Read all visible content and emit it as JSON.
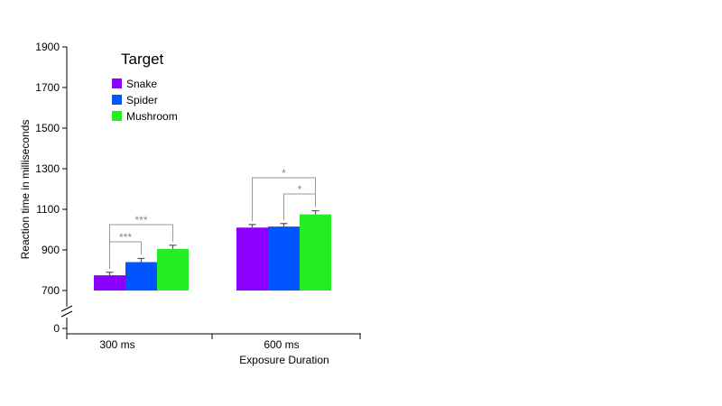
{
  "chart_data": {
    "type": "bar",
    "title": "",
    "xlabel": "Exposure Duration",
    "ylabel": "Reaction time in milliseconds",
    "ylim": [
      700,
      1900
    ],
    "y_ticks": [
      "1900",
      "1700",
      "1500",
      "1300",
      "1100",
      "900",
      "700"
    ],
    "y_break_tick": "0",
    "categories": [
      "300 ms",
      "600 ms"
    ],
    "legend": {
      "title": "Target",
      "placement": "top-left"
    },
    "series": [
      {
        "name": "Snake",
        "color": "#8b00ff",
        "values": [
          775,
          1010
        ],
        "errors": [
          15,
          15
        ]
      },
      {
        "name": "Spider",
        "color": "#0055ff",
        "values": [
          840,
          1015
        ],
        "errors": [
          18,
          15
        ]
      },
      {
        "name": "Mushroom",
        "color": "#22ee22",
        "values": [
          905,
          1075
        ],
        "errors": [
          18,
          18
        ]
      }
    ],
    "annotations": [
      {
        "category": 0,
        "from": "Snake",
        "to": "Spider",
        "label": "***"
      },
      {
        "category": 0,
        "from": "Snake",
        "to": "Mushroom",
        "label": "***"
      },
      {
        "category": 1,
        "from": "Spider",
        "to": "Mushroom",
        "label": "*"
      },
      {
        "category": 1,
        "from": "Snake",
        "to": "Mushroom",
        "label": "*"
      }
    ],
    "grid": false
  },
  "images": [
    {
      "name": "cherries-icon"
    },
    {
      "name": "sea-buckthorn-icon"
    },
    {
      "name": "pomegranate-icon"
    },
    {
      "name": "blueberries-icon"
    },
    {
      "name": "mango-icon"
    },
    {
      "name": "banana-icon"
    },
    {
      "name": "snake-icon"
    },
    {
      "name": "grapes-icon"
    },
    {
      "name": "watermelon-icon"
    }
  ]
}
